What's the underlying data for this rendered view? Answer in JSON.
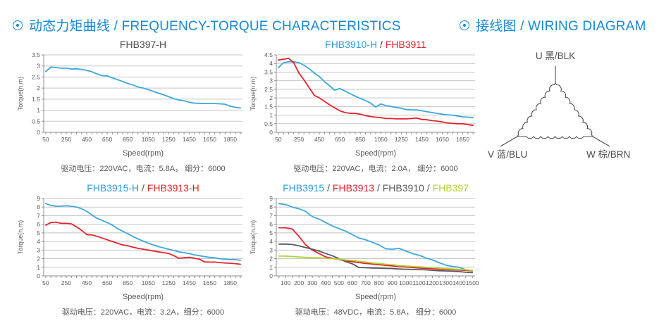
{
  "headers": {
    "left_text": "动态力矩曲线 / FREQUENCY-TORQUE CHARACTERISTICS",
    "right_text": "接线图 / WIRING DIAGRAM",
    "accent_color": "#1489d6"
  },
  "colors": {
    "grid": "#c5c5c7",
    "axis": "#8e8e90",
    "tick": "#5a5a5c",
    "title_dark": "#4d4d4f",
    "blue": "#3ba7dd",
    "red": "#e8222d",
    "gray": "#58595b",
    "green": "#b3d236"
  },
  "chart_data": [
    {
      "type": "line",
      "title_parts": [
        {
          "text": "FHB397-H",
          "color": "#4d4d4f"
        }
      ],
      "xlabel": "Speed(rpm)",
      "ylabel": "Torque(n.m)",
      "caption": "驱动电压：220VAC，电流：5.8A， 细分：6000",
      "xlim": [
        30,
        1970
      ],
      "ylim": [
        0,
        3.5
      ],
      "y_step": 0.5,
      "x_minor_step": 50,
      "x_tick_labels": [
        50,
        250,
        450,
        650,
        850,
        1050,
        1250,
        1450,
        1650,
        1850
      ],
      "grid": "horizontal",
      "legend": "none",
      "series": [
        {
          "name": "FHB397-H",
          "color": "#3ba7dd",
          "x_start": 50,
          "x_step": 50,
          "values": [
            2.75,
            2.95,
            2.93,
            2.9,
            2.9,
            2.86,
            2.87,
            2.84,
            2.8,
            2.74,
            2.64,
            2.56,
            2.55,
            2.46,
            2.38,
            2.3,
            2.21,
            2.14,
            2.05,
            2.0,
            1.93,
            1.85,
            1.77,
            1.7,
            1.61,
            1.52,
            1.46,
            1.43,
            1.36,
            1.32,
            1.31,
            1.3,
            1.3,
            1.3,
            1.29,
            1.27,
            1.18,
            1.13,
            1.1
          ]
        }
      ]
    },
    {
      "type": "line",
      "title_parts": [
        {
          "text": "FHB3910-H",
          "color": "#2b9eda"
        },
        {
          "text": "FHB3911",
          "color": "#e8222d"
        }
      ],
      "xlabel": "Speed(rpm)",
      "ylabel": "Torque(n.m)",
      "caption": "驱动电压：220VAC，电流：2.0A， 细分：6000",
      "xlim": [
        30,
        1970
      ],
      "ylim": [
        0,
        4.5
      ],
      "y_step": 0.5,
      "x_minor_step": 50,
      "x_tick_labels": [
        50,
        250,
        450,
        650,
        850,
        1050,
        1250,
        1450,
        1650,
        1850
      ],
      "grid": "horizontal",
      "legend": "none",
      "series": [
        {
          "name": "FHB3910-H",
          "color": "#3ba7dd",
          "x_start": 50,
          "x_step": 50,
          "values": [
            3.75,
            4.05,
            4.1,
            4.1,
            4.05,
            3.9,
            3.7,
            3.45,
            3.25,
            2.95,
            2.7,
            2.45,
            2.55,
            2.4,
            2.25,
            2.1,
            1.97,
            1.85,
            1.7,
            1.47,
            1.65,
            1.55,
            1.5,
            1.45,
            1.4,
            1.32,
            1.3,
            1.3,
            1.25,
            1.2,
            1.15,
            1.1,
            1.05,
            1.02,
            1.0,
            0.95,
            0.9,
            0.88,
            0.85
          ]
        },
        {
          "name": "FHB3911",
          "color": "#e8222d",
          "x_start": 50,
          "x_step": 50,
          "values": [
            4.2,
            4.25,
            4.3,
            4.05,
            3.45,
            3.05,
            2.6,
            2.15,
            2.0,
            1.8,
            1.6,
            1.42,
            1.25,
            1.15,
            1.1,
            1.1,
            1.05,
            0.97,
            0.92,
            0.88,
            0.85,
            0.8,
            0.8,
            0.78,
            0.78,
            0.78,
            0.8,
            0.83,
            0.75,
            0.73,
            0.68,
            0.65,
            0.6,
            0.55,
            0.52,
            0.5,
            0.5,
            0.45,
            0.4
          ]
        }
      ]
    },
    {
      "type": "line",
      "title_parts": [
        {
          "text": "FHB3915-H",
          "color": "#2b9eda"
        },
        {
          "text": "FHB3913-H",
          "color": "#e8222d"
        }
      ],
      "xlabel": "Speed(rpm)",
      "ylabel": "Torque(n.m)",
      "caption": "驱动电压：220VAC，电流：3.2A，细分：6000",
      "xlim": [
        30,
        1970
      ],
      "ylim": [
        0,
        9
      ],
      "y_step": 1,
      "x_minor_step": 50,
      "x_tick_labels": [
        50,
        250,
        450,
        650,
        850,
        1050,
        1250,
        1450,
        1650,
        1850
      ],
      "grid": "horizontal",
      "legend": "none",
      "series": [
        {
          "name": "FHB3915-H",
          "color": "#3ba7dd",
          "x_start": 50,
          "x_step": 50,
          "values": [
            8.4,
            8.2,
            8.1,
            8.1,
            8.15,
            8.1,
            8.0,
            7.8,
            7.5,
            7.1,
            6.7,
            6.45,
            6.2,
            5.9,
            5.5,
            5.2,
            4.9,
            4.6,
            4.3,
            4.05,
            3.8,
            3.6,
            3.4,
            3.25,
            3.1,
            2.95,
            2.8,
            2.7,
            2.6,
            2.45,
            2.35,
            2.25,
            2.15,
            2.1,
            2.0,
            1.95,
            1.9,
            1.88,
            1.82
          ]
        },
        {
          "name": "FHB3913-H",
          "color": "#e8222d",
          "x_start": 50,
          "x_step": 50,
          "values": [
            5.9,
            6.2,
            6.25,
            6.1,
            6.1,
            6.05,
            5.7,
            5.3,
            4.8,
            4.75,
            4.6,
            4.4,
            4.2,
            4.0,
            3.8,
            3.6,
            3.5,
            3.35,
            3.2,
            3.1,
            3.0,
            2.9,
            2.8,
            2.7,
            2.6,
            2.35,
            2.05,
            2.1,
            2.15,
            2.05,
            1.95,
            1.62,
            1.6,
            1.6,
            1.55,
            1.5,
            1.47,
            1.42,
            1.35
          ]
        }
      ]
    },
    {
      "type": "line",
      "title_parts": [
        {
          "text": "FHB3915",
          "color": "#2b9eda"
        },
        {
          "text": "FHB3913",
          "color": "#e8222d"
        },
        {
          "text": "FHB3910",
          "color": "#58595b"
        },
        {
          "text": "FHB397",
          "color": "#b3d236"
        }
      ],
      "xlabel": "Speed(rpm)",
      "ylabel": "Torque(n.m)",
      "caption": "驱动电压：48VDC，电流：5.8A， 细分：6000",
      "xlim": [
        30,
        1520
      ],
      "ylim": [
        0,
        9
      ],
      "y_step": 1,
      "x_minor_step": 50,
      "x_tick_labels": [
        100,
        200,
        300,
        400,
        500,
        600,
        700,
        800,
        900,
        1000,
        1100,
        1200,
        1300,
        1400,
        1500
      ],
      "grid": "horizontal",
      "legend": "none",
      "series": [
        {
          "name": "FHB3915",
          "color": "#3ba7dd",
          "x_start": 50,
          "x_step": 50,
          "values": [
            8.4,
            8.3,
            8.0,
            7.8,
            7.5,
            6.9,
            6.6,
            6.2,
            5.8,
            5.5,
            5.2,
            4.8,
            4.4,
            4.2,
            3.9,
            3.6,
            3.15,
            3.1,
            3.2,
            2.9,
            2.6,
            2.4,
            2.1,
            1.85,
            1.55,
            1.25,
            1.1,
            1.0,
            0.7,
            0.6
          ]
        },
        {
          "name": "FHB3913",
          "color": "#e8222d",
          "x_start": 50,
          "x_step": 50,
          "values": [
            5.6,
            5.6,
            5.45,
            4.6,
            3.6,
            3.0,
            2.6,
            2.2,
            2.05,
            1.9,
            1.75,
            1.65,
            1.55,
            1.45,
            1.38,
            1.3,
            1.22,
            1.15,
            1.1,
            1.02,
            0.97,
            0.92,
            0.88,
            0.83,
            0.78,
            0.75,
            0.72,
            0.68,
            0.64,
            0.6
          ]
        },
        {
          "name": "FHB3910",
          "color": "#58595b",
          "x_start": 50,
          "x_step": 50,
          "values": [
            3.7,
            3.7,
            3.65,
            3.5,
            3.3,
            3.1,
            2.9,
            2.6,
            2.35,
            2.0,
            1.65,
            1.4,
            0.97,
            0.95,
            0.92,
            0.9,
            0.87,
            0.85,
            0.8,
            0.77,
            0.75,
            0.73,
            0.7,
            0.65,
            0.6,
            0.57,
            0.55,
            0.5,
            0.42,
            0.38
          ]
        },
        {
          "name": "FHB397",
          "color": "#b3d236",
          "x_start": 50,
          "x_step": 50,
          "values": [
            2.3,
            2.3,
            2.25,
            2.2,
            2.15,
            2.1,
            2.1,
            2.05,
            2.0,
            1.95,
            1.85,
            1.8,
            1.7,
            1.6,
            1.5,
            1.45,
            1.35,
            1.3,
            1.2,
            1.15,
            1.1,
            1.05,
            1.0,
            0.95,
            0.9,
            0.85,
            0.8,
            0.75,
            0.7,
            0.65
          ]
        }
      ]
    }
  ],
  "wiring": {
    "type": "delta-winding",
    "terminals": [
      {
        "id": "U",
        "label": "U 黑/BLK"
      },
      {
        "id": "V",
        "label": "V 蓝/BLU"
      },
      {
        "id": "W",
        "label": "W 棕/BRN"
      }
    ]
  }
}
